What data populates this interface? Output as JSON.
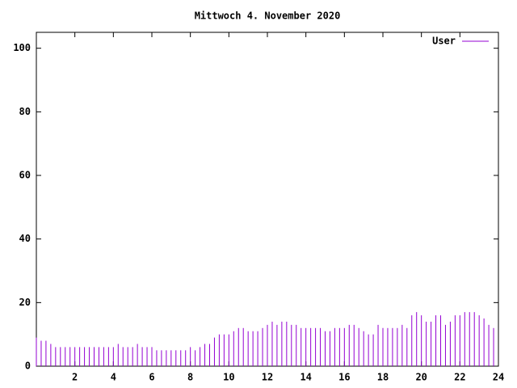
{
  "chart_data": {
    "type": "impulse",
    "title": "Mittwoch 4. November 2020",
    "x": [
      0,
      0.25,
      0.5,
      0.75,
      1,
      1.25,
      1.5,
      1.75,
      2,
      2.25,
      2.5,
      2.75,
      3,
      3.25,
      3.5,
      3.75,
      4,
      4.25,
      4.5,
      4.75,
      5,
      5.25,
      5.5,
      5.75,
      6,
      6.25,
      6.5,
      6.75,
      7,
      7.25,
      7.5,
      7.75,
      8,
      8.25,
      8.5,
      8.75,
      9,
      9.25,
      9.5,
      9.75,
      10,
      10.25,
      10.5,
      10.75,
      11,
      11.25,
      11.5,
      11.75,
      12,
      12.25,
      12.5,
      12.75,
      13,
      13.25,
      13.5,
      13.75,
      14,
      14.25,
      14.5,
      14.75,
      15,
      15.25,
      15.5,
      15.75,
      16,
      16.25,
      16.5,
      16.75,
      17,
      17.25,
      17.5,
      17.75,
      18,
      18.25,
      18.5,
      18.75,
      19,
      19.25,
      19.5,
      19.75,
      20,
      20.25,
      20.5,
      20.75,
      21,
      21.25,
      21.5,
      21.75,
      22,
      22.25,
      22.5,
      22.75,
      23,
      23.25,
      23.5,
      23.75
    ],
    "series": [
      {
        "name": "User",
        "color": "#9400d3",
        "values": [
          9,
          8,
          8,
          7,
          6,
          6,
          6,
          6,
          6,
          6,
          6,
          6,
          6,
          6,
          6,
          6,
          6,
          7,
          6,
          6,
          6,
          7,
          6,
          6,
          6,
          5,
          5,
          5,
          5,
          5,
          5,
          5,
          6,
          5,
          6,
          7,
          7,
          9,
          10,
          10,
          10,
          11,
          12,
          12,
          11,
          11,
          11,
          12,
          13,
          14,
          13,
          14,
          14,
          13,
          13,
          12,
          12,
          12,
          12,
          12,
          11,
          11,
          12,
          12,
          12,
          13,
          13,
          12,
          11,
          10,
          10,
          13,
          12,
          12,
          12,
          12,
          13,
          12,
          16,
          17,
          16,
          14,
          14,
          16,
          16,
          13,
          14,
          16,
          16,
          17,
          17,
          17,
          16,
          15,
          13,
          12
        ]
      }
    ],
    "xlim": [
      0,
      24
    ],
    "xticks": [
      2,
      4,
      6,
      8,
      10,
      12,
      14,
      16,
      18,
      20,
      22,
      24
    ],
    "ylim": [
      0,
      105
    ],
    "yticks": [
      0,
      20,
      40,
      60,
      80,
      100
    ]
  }
}
